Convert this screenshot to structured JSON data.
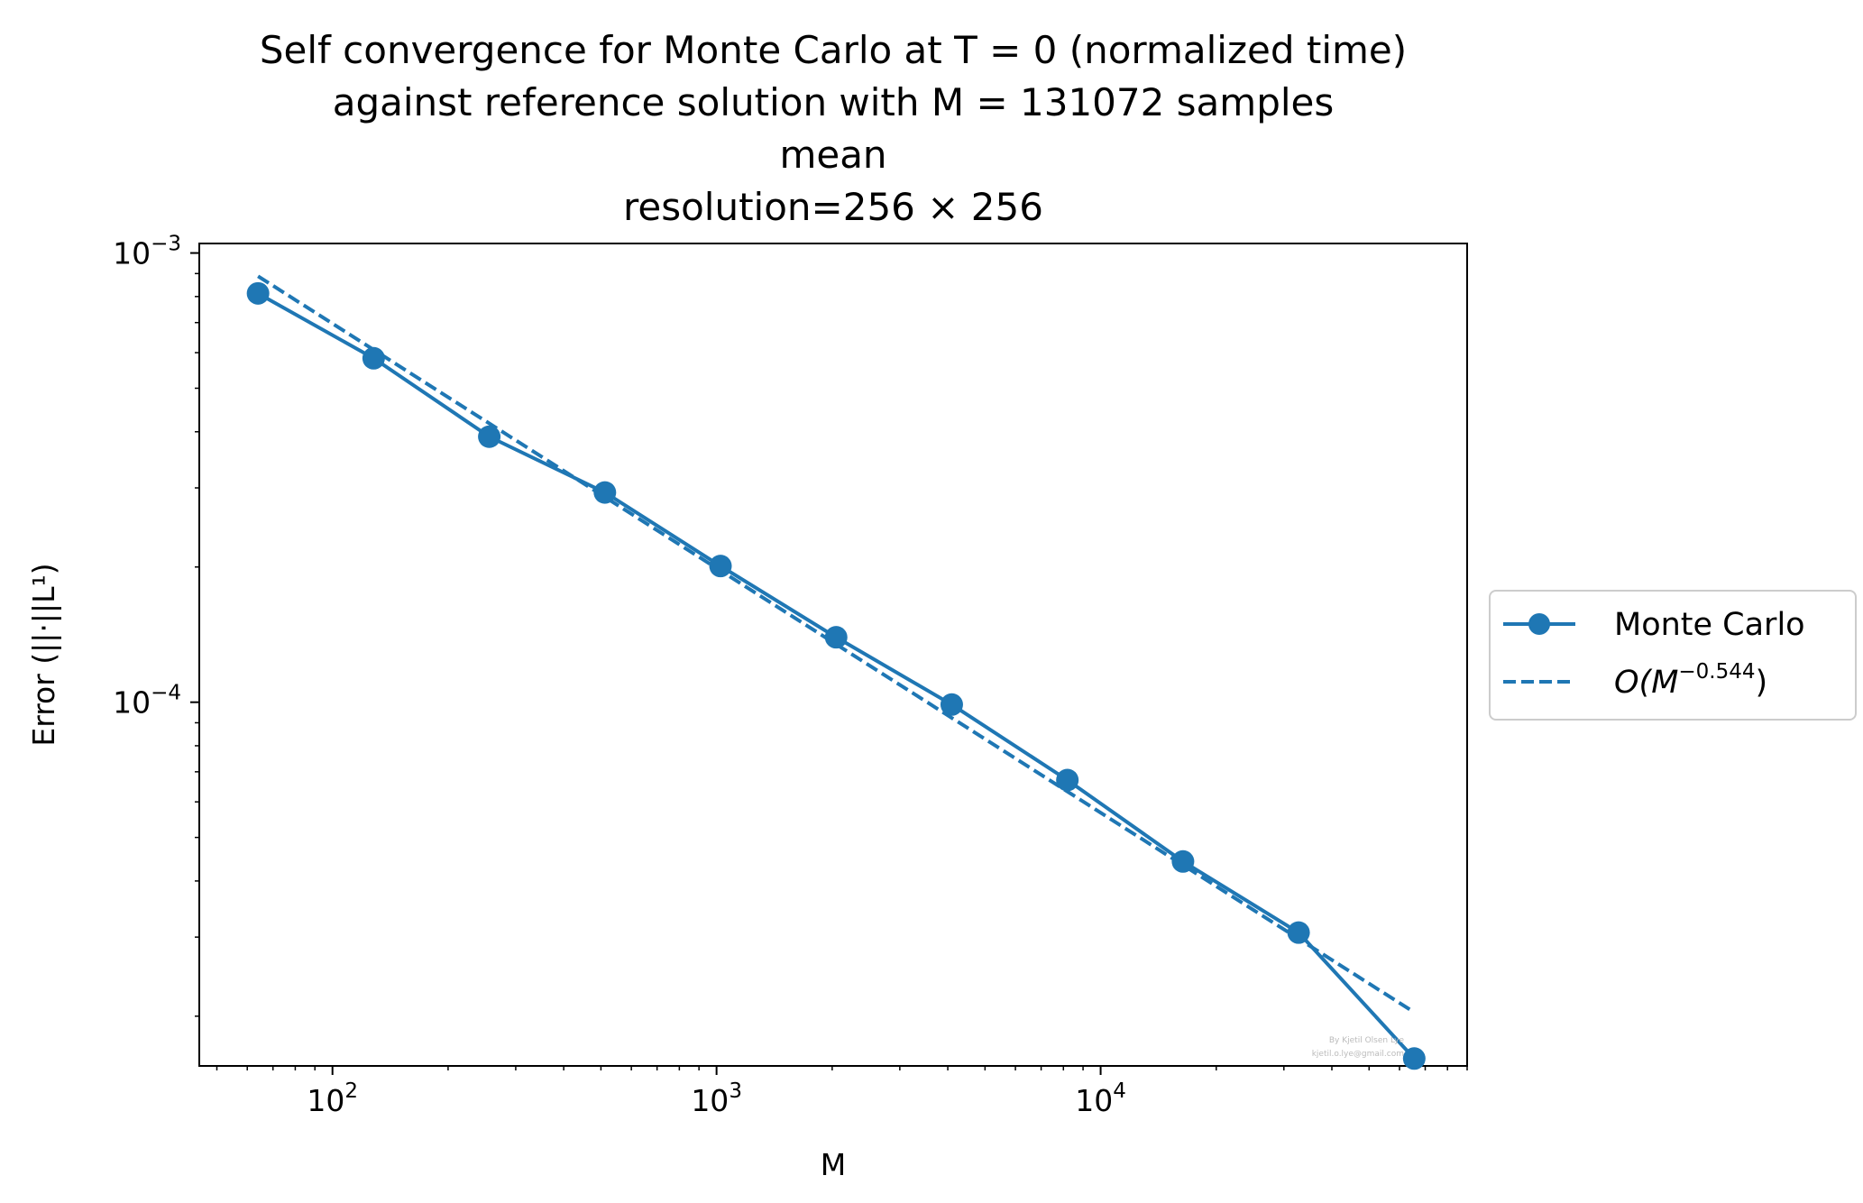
{
  "chart_data": {
    "type": "line",
    "title_lines": [
      "Self convergence for Monte Carlo at T = 0 (normalized time)",
      "against reference solution with M = 131072 samples",
      "mean",
      "resolution=256 × 256"
    ],
    "xlabel": "M",
    "ylabel": "Error (||·||L¹)",
    "xscale": "log",
    "yscale": "log",
    "xlim": [
      45,
      90000
    ],
    "ylim": [
      1.55e-05,
      0.00105
    ],
    "x_ticks": [
      {
        "base": "10",
        "exp": "2",
        "value": 100
      },
      {
        "base": "10",
        "exp": "3",
        "value": 1000
      },
      {
        "base": "10",
        "exp": "4",
        "value": 10000
      }
    ],
    "y_ticks": [
      {
        "base": "10",
        "exp": "−3",
        "value": 0.001
      },
      {
        "base": "10",
        "exp": "−4",
        "value": 0.0001
      }
    ],
    "grid": false,
    "legend_position": "outside right, center",
    "series": [
      {
        "name": "Monte Carlo",
        "style": "solid line with circle markers",
        "color": "#1f77b4",
        "x": [
          64,
          128,
          256,
          512,
          1024,
          2048,
          4096,
          8192,
          16384,
          32768,
          65536
        ],
        "y": [
          0.000813,
          0.000583,
          0.00039,
          0.000293,
          0.000201,
          0.0001395,
          9.88e-05,
          6.71e-05,
          4.42e-05,
          3.07e-05,
          1.61e-05
        ]
      },
      {
        "name": "O(M^−0.544)",
        "legend_parts": {
          "prefix": "O(M",
          "exponent": "−0.544",
          "suffix": ")"
        },
        "style": "dashed line",
        "color": "#1f77b4",
        "x": [
          64,
          65536
        ],
        "y": [
          0.000888,
          2.04e-05
        ]
      }
    ],
    "watermark": [
      "By Kjetil Olsen Lye",
      "kjetil.o.lye@gmail.com"
    ]
  }
}
